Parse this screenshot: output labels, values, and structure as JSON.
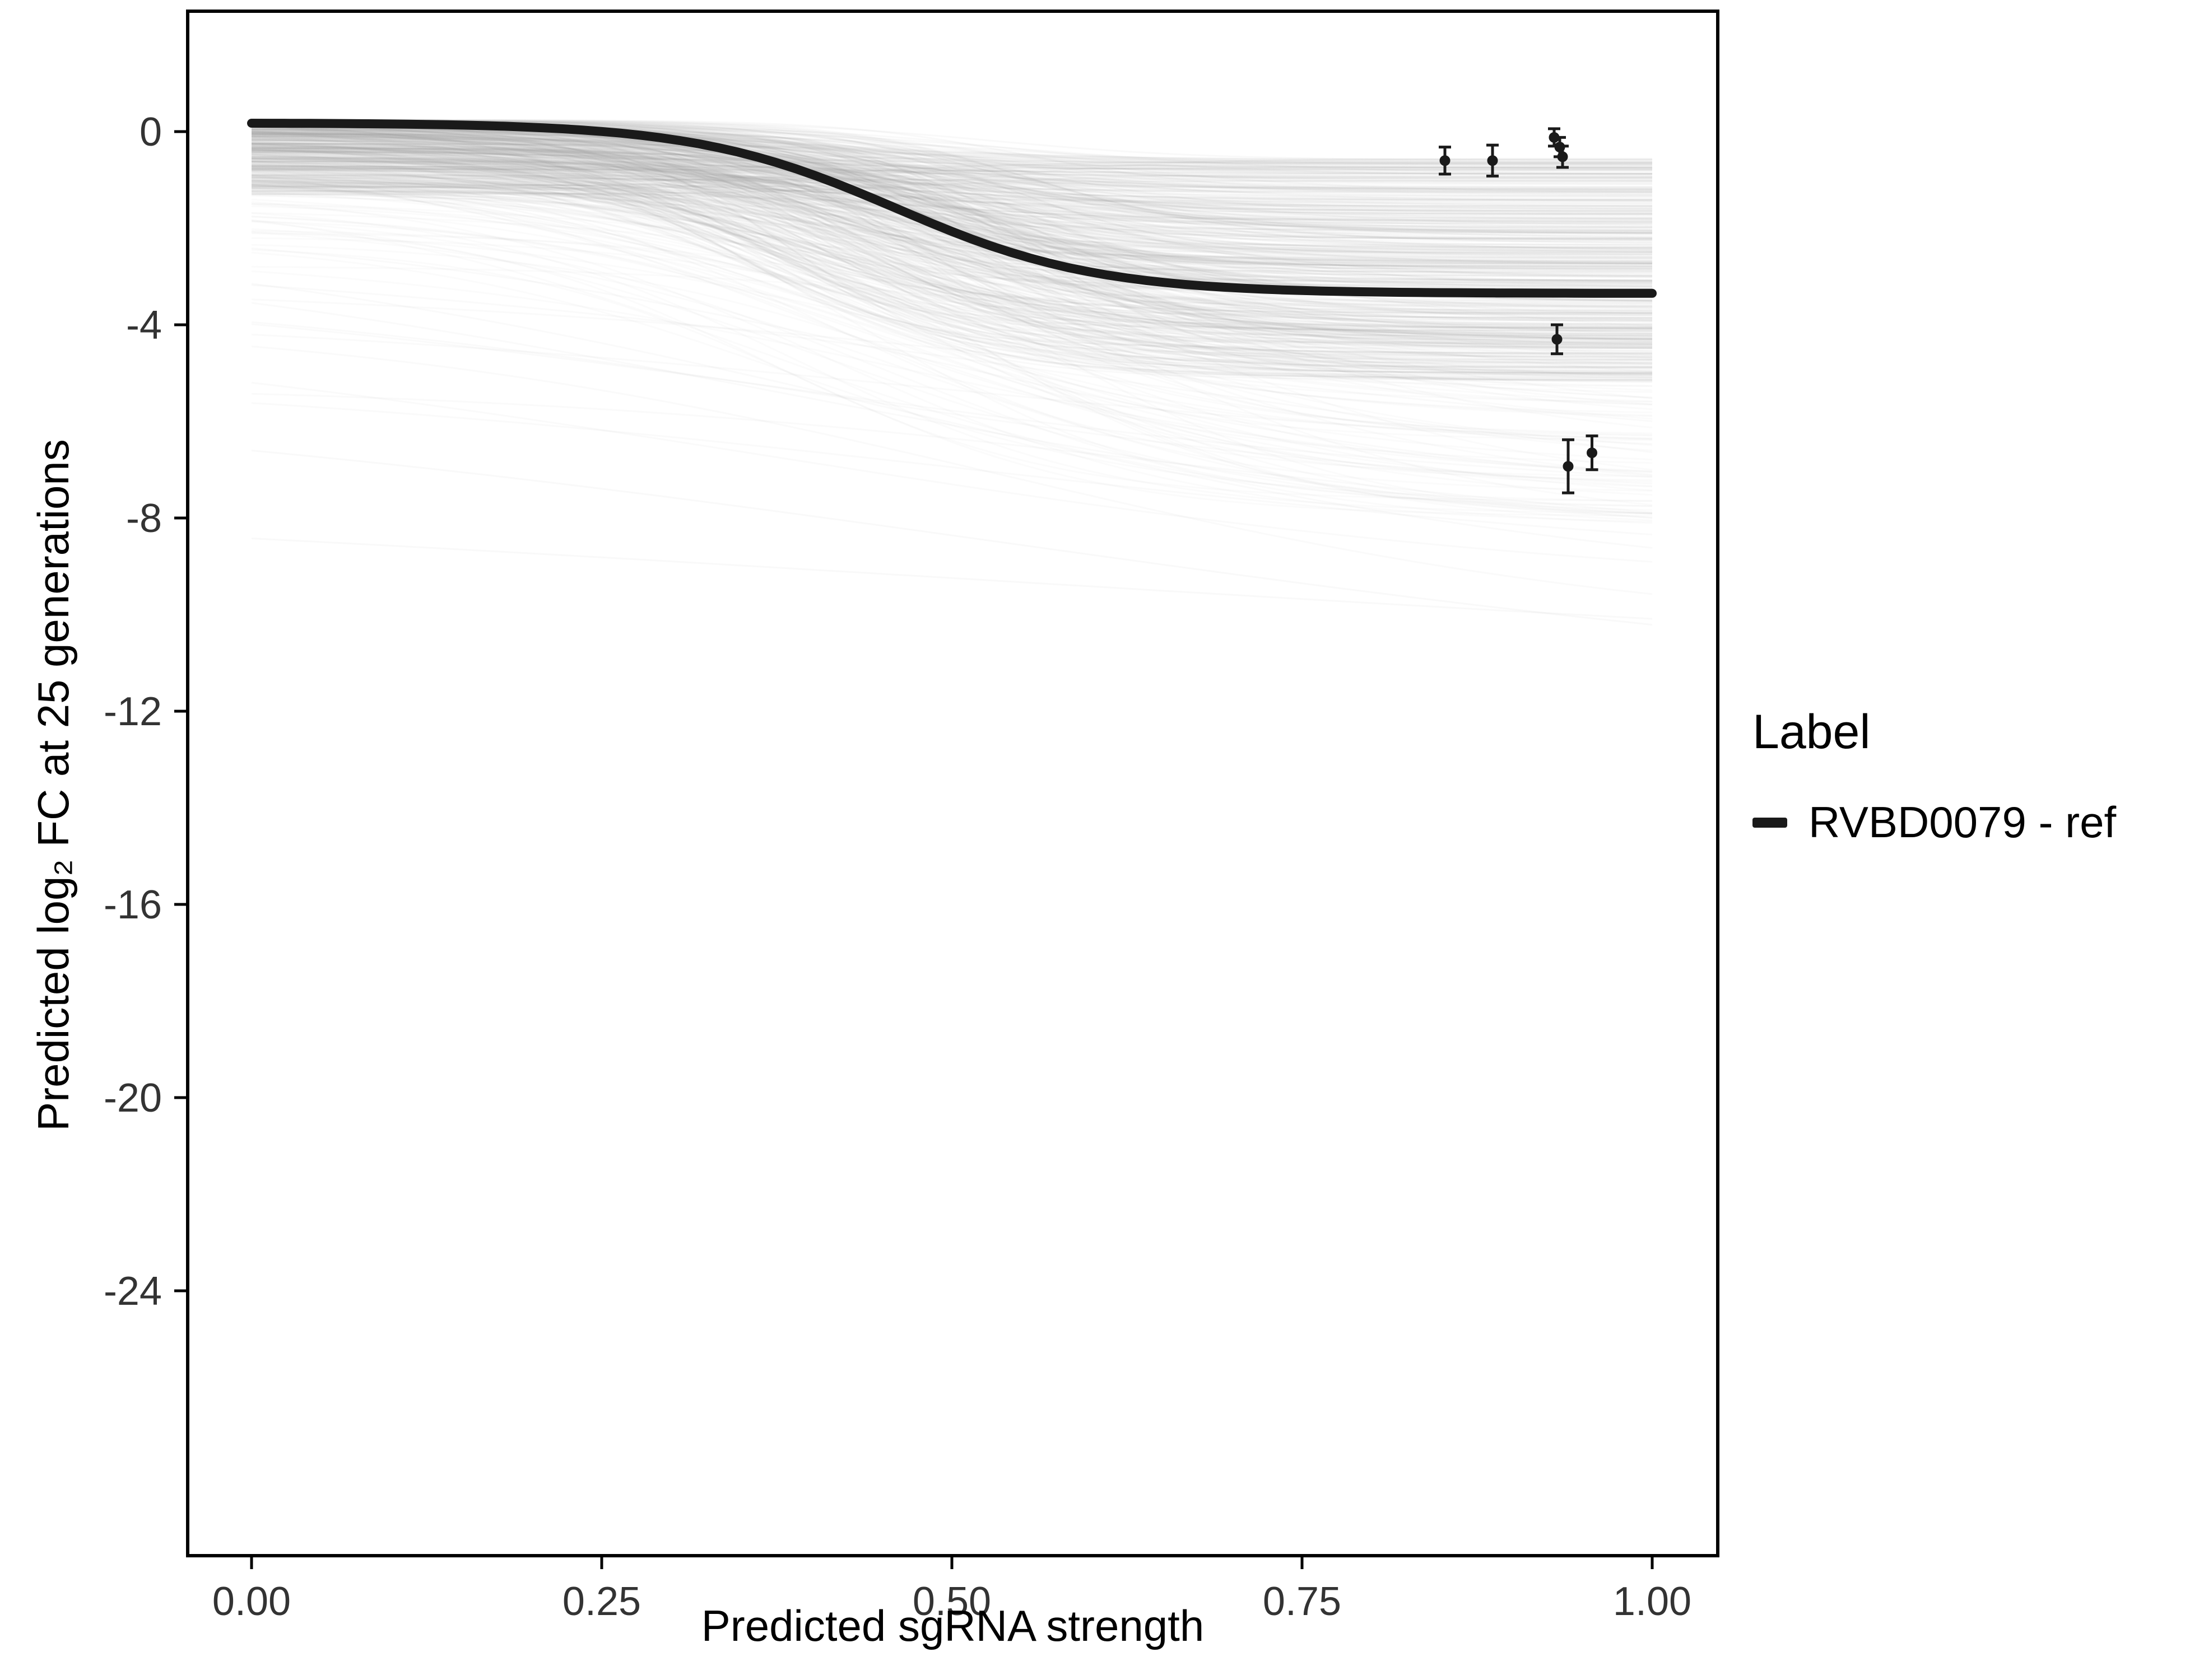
{
  "chart_data": {
    "type": "line",
    "title": "",
    "xlabel": "Predicted sgRNA strength",
    "ylabel": "Predicted  log₂ FC at 25 generations",
    "xlim": [
      -0.045,
      1.045
    ],
    "ylim": [
      -29.5,
      2.5
    ],
    "grid": false,
    "legend_position": "right",
    "xticks": [
      {
        "v": 0.0,
        "label": "0.00"
      },
      {
        "v": 0.25,
        "label": "0.25"
      },
      {
        "v": 0.5,
        "label": "0.50"
      },
      {
        "v": 0.75,
        "label": "0.75"
      },
      {
        "v": 1.0,
        "label": "1.00"
      }
    ],
    "yticks": [
      {
        "v": 0,
        "label": "0"
      },
      {
        "v": -4,
        "label": "-4"
      },
      {
        "v": -8,
        "label": "-8"
      },
      {
        "v": -12,
        "label": "-12"
      },
      {
        "v": -16,
        "label": "-16"
      },
      {
        "v": -20,
        "label": "-20"
      },
      {
        "v": -24,
        "label": "-24"
      }
    ],
    "main_series": {
      "name": "RVBD0079 - ref",
      "color": "#1a1a1a",
      "sigmoid": {
        "top": 0.18,
        "bottom": -3.35,
        "mid": 0.46,
        "k": 14
      }
    },
    "ensemble": {
      "description": "posterior draw curves",
      "color": "#9a9a9a",
      "seed": 20231107,
      "groups": [
        {
          "count": 480,
          "opacity": 0.055,
          "bias": true,
          "top": [
            -1.3,
            0.25
          ],
          "bottom": [
            -5.2,
            -0.55
          ],
          "mid": [
            0.34,
            0.56
          ],
          "k": [
            8,
            16
          ]
        },
        {
          "count": 70,
          "opacity": 0.045,
          "bias": true,
          "top": [
            -2.8,
            -0.1
          ],
          "bottom": [
            -8.3,
            -4.2
          ],
          "mid": [
            0.36,
            0.62
          ],
          "k": [
            5,
            10
          ]
        },
        {
          "count": 12,
          "opacity": 0.05,
          "bias": false,
          "top": [
            -5.5,
            -1.5
          ],
          "bottom": [
            -10.5,
            -6.5
          ],
          "mid": [
            0.3,
            0.7
          ],
          "k": [
            2.5,
            4.5
          ]
        },
        {
          "count": 2,
          "opacity": 0.06,
          "bias": false,
          "top": [
            -7.2,
            -5.0
          ],
          "bottom": [
            -12.0,
            -10.0
          ],
          "mid": [
            0.4,
            0.6
          ],
          "k": [
            1.5,
            2.5
          ]
        }
      ]
    },
    "points": {
      "color": "#1a1a1a",
      "values": [
        {
          "x": 0.852,
          "y": -0.6,
          "err": 0.28
        },
        {
          "x": 0.886,
          "y": -0.6,
          "err": 0.32
        },
        {
          "x": 0.93,
          "y": -0.12,
          "err": 0.18
        },
        {
          "x": 0.934,
          "y": -0.32,
          "err": 0.2
        },
        {
          "x": 0.936,
          "y": -0.52,
          "err": 0.22
        },
        {
          "x": 0.932,
          "y": -4.3,
          "err": 0.3
        },
        {
          "x": 0.94,
          "y": -6.93,
          "err": 0.55
        },
        {
          "x": 0.957,
          "y": -6.65,
          "err": 0.35
        }
      ]
    }
  },
  "legend": {
    "title": "Label",
    "items": [
      {
        "label": "RVBD0079 - ref",
        "color": "#1a1a1a"
      }
    ]
  }
}
